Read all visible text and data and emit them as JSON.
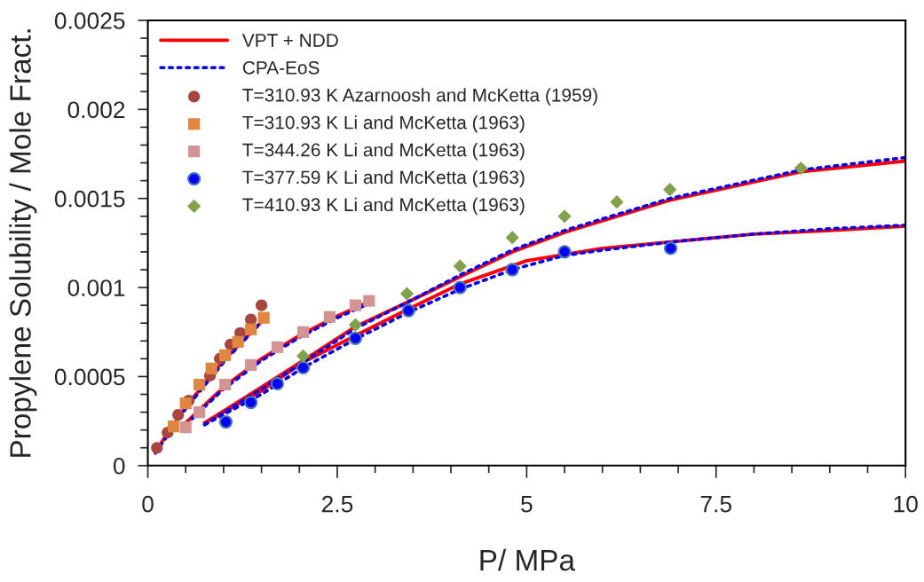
{
  "chart_data": {
    "type": "scatter",
    "xlabel": "P/ MPa",
    "ylabel": "Propylene Solubility / Mole Fract.",
    "xlim": [
      0,
      10
    ],
    "ylim": [
      0,
      0.0025
    ],
    "xticks": [
      0,
      2.5,
      5,
      7.5,
      10
    ],
    "yticks": [
      0,
      0.0005,
      0.001,
      0.0015,
      0.002,
      0.0025
    ],
    "grid": false,
    "legend": "top left",
    "series": [
      {
        "name": "VPT + NDD",
        "type": "line",
        "line_style": "solid",
        "marker": "none",
        "color": "#ff0000",
        "x": [
          0.1,
          0.5,
          1.0,
          1.55
        ],
        "values": [
          8e-05,
          0.00033,
          0.00059,
          0.00083
        ]
      },
      {
        "type": "line",
        "line_style": "solid",
        "marker": "none",
        "color": "#ff0000",
        "x": [
          0.5,
          1.0,
          1.5,
          2.0,
          2.5,
          2.92
        ],
        "values": [
          0.00024,
          0.00044,
          0.0006,
          0.00073,
          0.00084,
          0.00092
        ]
      },
      {
        "type": "line",
        "line_style": "solid",
        "marker": "none",
        "color": "#ff0000",
        "x": [
          0.75,
          1.5,
          2.05,
          2.74,
          3.44,
          4.12,
          5,
          6,
          7,
          8,
          9,
          10
        ],
        "values": [
          0.00024,
          0.00042,
          0.00058,
          0.00073,
          0.00088,
          0.00102,
          0.00115,
          0.00122,
          0.00126,
          0.0013,
          0.00132,
          0.001345
        ]
      },
      {
        "type": "line",
        "line_style": "solid",
        "marker": "none",
        "color": "#ff0000",
        "x": [
          0.75,
          1.5,
          2.05,
          2.74,
          3.44,
          4.12,
          4.81,
          5.5,
          6.19,
          6.89,
          8.62,
          10
        ],
        "values": [
          0.00024,
          0.00044,
          0.00059,
          0.00078,
          0.00092,
          0.00106,
          0.0012,
          0.00131,
          0.0014,
          0.00149,
          0.00165,
          0.00171
        ]
      },
      {
        "name": "CPA-EoS",
        "type": "line",
        "line_style": "dotted",
        "marker": "none",
        "color": "#0000ff",
        "x": [
          0.1,
          0.5,
          1.0,
          1.55
        ],
        "values": [
          7e-05,
          0.00032,
          0.00058,
          0.00083
        ]
      },
      {
        "type": "line",
        "line_style": "dotted",
        "marker": "none",
        "color": "#0000ff",
        "x": [
          0.5,
          1.0,
          1.5,
          2.0,
          2.5,
          2.92
        ],
        "values": [
          0.00023,
          0.00043,
          0.00059,
          0.00072,
          0.00083,
          0.00091
        ]
      },
      {
        "type": "line",
        "line_style": "dotted",
        "marker": "none",
        "color": "#0000ff",
        "x": [
          0.75,
          1.5,
          2.05,
          2.74,
          3.44,
          4.12,
          4.81,
          5.5,
          6,
          7,
          8,
          9,
          10
        ],
        "values": [
          0.00023,
          0.0004,
          0.00055,
          0.00071,
          0.00086,
          0.00099,
          0.0011,
          0.00118,
          0.00121,
          0.00126,
          0.0013,
          0.00133,
          0.00135
        ]
      },
      {
        "type": "line",
        "line_style": "dotted",
        "marker": "none",
        "color": "#0000ff",
        "x": [
          0.75,
          1.5,
          2.05,
          2.74,
          3.44,
          4.12,
          4.81,
          5.5,
          6.19,
          6.89,
          8.62,
          10
        ],
        "values": [
          0.00023,
          0.00043,
          0.00058,
          0.00077,
          0.00092,
          0.00107,
          0.00121,
          0.00132,
          0.00141,
          0.0015,
          0.00166,
          0.00173
        ]
      },
      {
        "name": "T=310.93 K Azarnoosh and McKetta (1959)",
        "marker": "circle",
        "color": "#a9443f",
        "x": [
          0.12,
          0.26,
          0.4,
          0.54,
          0.82,
          0.95,
          1.09,
          1.22,
          1.36,
          1.5
        ],
        "values": [
          0.0001,
          0.000185,
          0.000285,
          0.000365,
          0.000505,
          0.0006,
          0.00068,
          0.000745,
          0.00082,
          0.0009
        ]
      },
      {
        "name": "T=310.93 K Li and McKetta (1963)",
        "marker": "square",
        "color": "#e0863e",
        "x": [
          0.34,
          0.5,
          0.68,
          0.84,
          1.02,
          1.19,
          1.36,
          1.53
        ],
        "values": [
          0.00022,
          0.00035,
          0.000455,
          0.000545,
          0.00062,
          0.000695,
          0.000765,
          0.00083
        ]
      },
      {
        "name": "T=344.26 K Li and McKetta (1963)",
        "marker": "square",
        "color": "#d49494",
        "x": [
          0.5,
          0.68,
          1.02,
          1.36,
          1.71,
          2.05,
          2.4,
          2.74,
          2.92
        ],
        "values": [
          0.000215,
          0.0003,
          0.000455,
          0.000565,
          0.000665,
          0.00075,
          0.000835,
          0.0009,
          0.000925
        ]
      },
      {
        "name": "T=377.59 K Li and McKetta (1963)",
        "marker": "circle",
        "color": "#0000ff",
        "x": [
          1.03,
          1.36,
          1.71,
          2.05,
          2.74,
          3.44,
          4.12,
          4.81,
          5.5,
          6.9
        ],
        "values": [
          0.000245,
          0.000355,
          0.00046,
          0.00055,
          0.000715,
          0.00087,
          0.001,
          0.0011,
          0.0012,
          0.00122
        ]
      },
      {
        "name": "T=410.93 K Li and McKetta (1963)",
        "marker": "diamond",
        "color": "#82a24a",
        "x": [
          2.05,
          2.74,
          3.42,
          4.12,
          4.81,
          5.5,
          6.19,
          6.89,
          8.62
        ],
        "values": [
          0.000615,
          0.00079,
          0.000965,
          0.00112,
          0.00128,
          0.0014,
          0.00148,
          0.00155,
          0.00167
        ]
      }
    ]
  }
}
